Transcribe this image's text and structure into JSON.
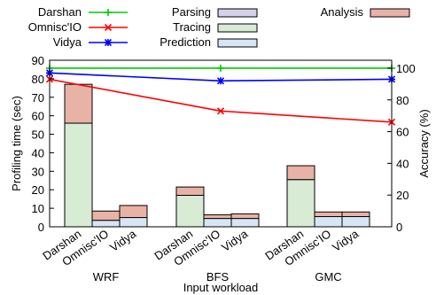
{
  "chart_data": {
    "type": "bar",
    "stacked": true,
    "has_secondary_axis": true,
    "grid": false,
    "legend_position": "top",
    "xlabel": "Input workload",
    "ylabel": "Profiling time (sec)",
    "y2label": "Accuracy (%)",
    "ylim": [
      0,
      90
    ],
    "y2lim": [
      0,
      105
    ],
    "yticks": [
      0,
      10,
      20,
      30,
      40,
      50,
      60,
      70,
      80,
      90
    ],
    "y2ticks": [
      0,
      20,
      40,
      60,
      80,
      100
    ],
    "groups": [
      "WRF",
      "BFS",
      "GMC"
    ],
    "categories": [
      "Darshan",
      "Omnisc'IO",
      "Vidya"
    ],
    "bar_series": [
      {
        "name": "Prediction",
        "color": "#d6e6f5",
        "values": [
          [
            0,
            3.5,
            5.0
          ],
          [
            0,
            4.5,
            4.5
          ],
          [
            0,
            5.5,
            5.5
          ]
        ]
      },
      {
        "name": "Tracing",
        "color": "#d8ecd5",
        "values": [
          [
            56,
            0,
            0
          ],
          [
            17,
            0,
            0
          ],
          [
            25.5,
            0,
            0
          ]
        ]
      },
      {
        "name": "Parsing",
        "color": "#d7d0ea",
        "values": [
          [
            0,
            0,
            0
          ],
          [
            0,
            0,
            0
          ],
          [
            0,
            0,
            0
          ]
        ]
      },
      {
        "name": "Analysis",
        "color": "#e8b2a6",
        "values": [
          [
            21,
            5.0,
            6.5
          ],
          [
            4.5,
            2.0,
            2.5
          ],
          [
            7.5,
            2.5,
            2.5
          ]
        ]
      }
    ],
    "line_series": [
      {
        "name": "Darshan",
        "color": "#00cc00",
        "marker": "plus",
        "values": [
          100,
          100,
          100
        ]
      },
      {
        "name": "Omnisc'IO",
        "color": "#ff0000",
        "marker": "x",
        "values": [
          93,
          73,
          66
        ]
      },
      {
        "name": "Vidya",
        "color": "#0000ff",
        "marker": "star",
        "values": [
          97,
          92,
          93
        ]
      }
    ],
    "legend": [
      {
        "label": "Darshan",
        "kind": "line",
        "color": "#00cc00",
        "marker": "plus"
      },
      {
        "label": "Omnisc'IO",
        "kind": "line",
        "color": "#ff0000",
        "marker": "x"
      },
      {
        "label": "Vidya",
        "kind": "line",
        "color": "#0000ff",
        "marker": "star"
      },
      {
        "label": "Parsing",
        "kind": "box",
        "color": "#d7d0ea"
      },
      {
        "label": "Tracing",
        "kind": "box",
        "color": "#d8ecd5"
      },
      {
        "label": "Prediction",
        "kind": "box",
        "color": "#d6e6f5"
      },
      {
        "label": "Analysis",
        "kind": "box",
        "color": "#e8b2a6"
      }
    ]
  }
}
